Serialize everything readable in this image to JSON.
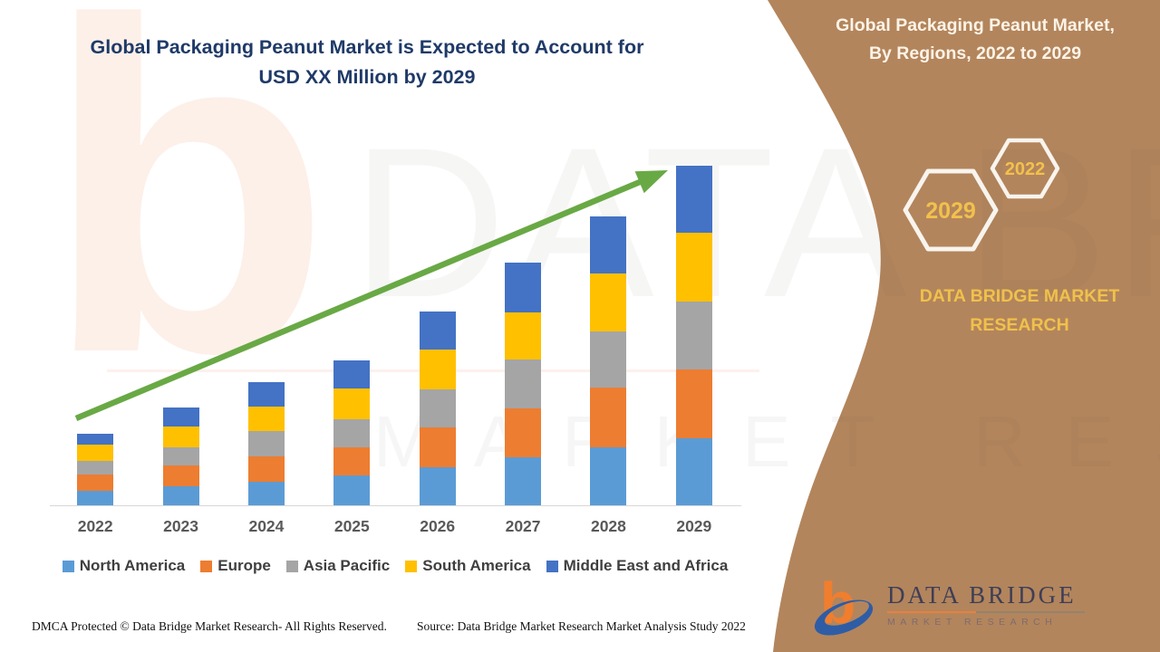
{
  "header": {
    "title_line1": "Global Packaging Peanut Market is Expected to Account for",
    "title_line2": "USD XX Million by 2029"
  },
  "chart_data": {
    "type": "bar",
    "stacked": true,
    "title": "Global Packaging Peanut Market is Expected to Account for USD XX Million by 2029",
    "xlabel": "",
    "ylabel": "",
    "units_note": "values shown as USD XX Million (masked); series values are relative heights",
    "categories": [
      "2022",
      "2023",
      "2024",
      "2025",
      "2026",
      "2027",
      "2028",
      "2029"
    ],
    "series": [
      {
        "name": "North America",
        "color": "#5b9bd5",
        "values": [
          16,
          21,
          26,
          33,
          42,
          53,
          64,
          74
        ]
      },
      {
        "name": "Europe",
        "color": "#ed7d31",
        "values": [
          18,
          23,
          28,
          31,
          44,
          54,
          66,
          76
        ]
      },
      {
        "name": "Asia Pacific",
        "color": "#a5a5a5",
        "values": [
          15,
          20,
          28,
          31,
          42,
          54,
          62,
          75
        ]
      },
      {
        "name": "South America",
        "color": "#ffc000",
        "values": [
          18,
          23,
          27,
          34,
          44,
          52,
          64,
          76
        ]
      },
      {
        "name": "Middle East and Africa",
        "color": "#4472c4",
        "values": [
          12,
          21,
          27,
          31,
          42,
          55,
          63,
          74
        ]
      }
    ],
    "totals": [
      79,
      108,
      136,
      160,
      214,
      268,
      319,
      375
    ],
    "legend_position": "bottom",
    "grid": false,
    "trend_arrow": {
      "present": true,
      "color": "#69a945",
      "direction": "up-right"
    }
  },
  "side_panel": {
    "title_line1": "Global Packaging Peanut Market,",
    "title_line2": "By Regions, 2022 to 2029",
    "hexagon_back_label": "2022",
    "hexagon_front_label": "2029",
    "brand_text": "DATA BRIDGE MARKET RESEARCH",
    "colors": {
      "background": "#b3855c",
      "accent_gold": "#f0c14b",
      "hexagon_stroke": "#f8f4ee"
    }
  },
  "logo": {
    "name": "DATA BRIDGE",
    "tagline": "MARKET RESEARCH"
  },
  "footer": {
    "left": "DMCA Protected © Data Bridge Market Research- All Rights Reserved.",
    "right": "Source: Data Bridge Market Research Market Analysis Study 2022"
  },
  "watermark": {
    "letter": "b",
    "big_text": "DATA BRIDGE",
    "row_text": "MARKET RESEARCH"
  }
}
